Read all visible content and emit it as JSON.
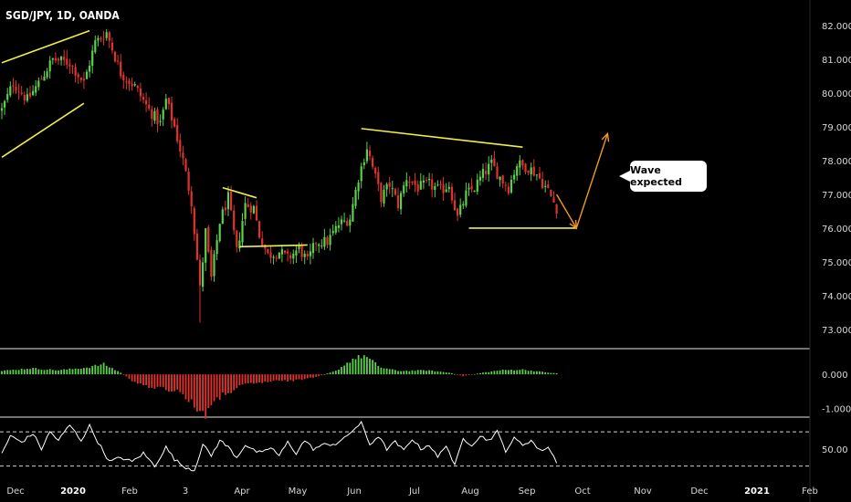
{
  "header": {
    "title": "SGD/JPY, 1D, OANDA"
  },
  "annotation": {
    "callout_text": "Wave expected"
  },
  "colors": {
    "up": "#5bd04a",
    "down": "#e0332d",
    "trendline": "#f2ef45",
    "arrow": "#f39a1e",
    "axis": "#e6e6e6"
  },
  "chart_data": [
    {
      "type": "candlestick",
      "title": "SGD/JPY, 1D, OANDA",
      "x_ticks": [
        "Dec",
        "2020",
        "Feb",
        "3",
        "Apr",
        "May",
        "Jun",
        "Jul",
        "Aug",
        "Sep",
        "Oct",
        "Nov",
        "Dec",
        "2021",
        "Feb"
      ],
      "y_ticks": [
        "82.000",
        "81.000",
        "80.000",
        "79.000",
        "78.000",
        "77.000",
        "76.000",
        "75.000",
        "74.000",
        "73.000"
      ],
      "ylim": [
        72.7,
        82.3
      ],
      "anchors": [
        [
          0,
          79.5
        ],
        [
          4,
          80.3
        ],
        [
          9,
          79.8
        ],
        [
          13,
          80.3
        ],
        [
          18,
          81.0
        ],
        [
          24,
          80.9
        ],
        [
          29,
          80.3
        ],
        [
          33,
          81.5
        ],
        [
          37,
          81.8
        ],
        [
          42,
          80.6
        ],
        [
          47,
          80.2
        ],
        [
          52,
          79.5
        ],
        [
          56,
          79.1
        ],
        [
          58,
          79.8
        ],
        [
          61,
          79.0
        ],
        [
          64,
          78.0
        ],
        [
          67,
          76.8
        ],
        [
          70,
          74.2
        ],
        [
          72,
          75.9
        ],
        [
          74,
          74.5
        ],
        [
          77,
          76.2
        ],
        [
          80,
          76.9
        ],
        [
          83,
          75.3
        ],
        [
          86,
          76.7
        ],
        [
          89,
          76.6
        ],
        [
          91,
          75.8
        ],
        [
          94,
          75.2
        ],
        [
          98,
          75.3
        ],
        [
          101,
          75.1
        ],
        [
          105,
          75.4
        ],
        [
          108,
          75.0
        ],
        [
          111,
          75.6
        ],
        [
          115,
          75.6
        ],
        [
          119,
          76.1
        ],
        [
          123,
          76.3
        ],
        [
          126,
          77.5
        ],
        [
          129,
          78.4
        ],
        [
          131,
          77.8
        ],
        [
          134,
          76.9
        ],
        [
          137,
          77.3
        ],
        [
          140,
          76.7
        ],
        [
          143,
          77.5
        ],
        [
          147,
          77.2
        ],
        [
          151,
          77.3
        ],
        [
          155,
          77.1
        ],
        [
          158,
          77.3
        ],
        [
          161,
          76.3
        ],
        [
          164,
          77.0
        ],
        [
          167,
          77.2
        ],
        [
          170,
          77.6
        ],
        [
          173,
          77.9
        ],
        [
          176,
          77.5
        ],
        [
          179,
          77.2
        ],
        [
          182,
          77.9
        ],
        [
          186,
          77.8
        ],
        [
          189,
          77.6
        ],
        [
          193,
          77.1
        ],
        [
          196,
          76.6
        ]
      ],
      "wick_extremes": {
        "high": 81.9,
        "low": 73.2
      },
      "annotations": {
        "trendlines": [
          {
            "from": [
              0,
              80.9
            ],
            "to": [
              31,
              81.85
            ]
          },
          {
            "from": [
              0,
              78.1
            ],
            "to": [
              29,
              79.7
            ]
          },
          {
            "from": [
              78,
              77.2
            ],
            "to": [
              90,
              76.9
            ]
          },
          {
            "from": [
              84,
              75.45
            ],
            "to": [
              108,
              75.5
            ]
          },
          {
            "from": [
              127,
              78.95
            ],
            "to": [
              184,
              78.4
            ]
          },
          {
            "from": [
              165,
              76.0
            ],
            "to": [
              203,
              76.0
            ]
          }
        ],
        "projection": [
          [
            196,
            77.0
          ],
          [
            203,
            76.0
          ],
          [
            214,
            78.8
          ]
        ]
      }
    },
    {
      "type": "histogram",
      "name": "Momentum oscillator",
      "y_ticks": [
        "0.000",
        "-1.000"
      ],
      "ylim": [
        -1.2,
        0.7
      ],
      "anchors": [
        [
          0,
          0.1
        ],
        [
          10,
          0.18
        ],
        [
          20,
          0.12
        ],
        [
          30,
          0.2
        ],
        [
          36,
          0.3
        ],
        [
          42,
          0.05
        ],
        [
          48,
          -0.3
        ],
        [
          56,
          -0.4
        ],
        [
          63,
          -0.5
        ],
        [
          68,
          -0.95
        ],
        [
          72,
          -1.15
        ],
        [
          78,
          -0.6
        ],
        [
          86,
          -0.3
        ],
        [
          96,
          -0.2
        ],
        [
          104,
          -0.18
        ],
        [
          112,
          -0.05
        ],
        [
          118,
          0.1
        ],
        [
          124,
          0.45
        ],
        [
          128,
          0.55
        ],
        [
          134,
          0.2
        ],
        [
          140,
          0.1
        ],
        [
          150,
          0.12
        ],
        [
          158,
          0.05
        ],
        [
          163,
          -0.05
        ],
        [
          170,
          0.05
        ],
        [
          176,
          0.12
        ],
        [
          184,
          0.14
        ],
        [
          190,
          0.08
        ],
        [
          197,
          0.02
        ]
      ]
    },
    {
      "type": "line",
      "name": "RSI",
      "y_ticks": [
        "50.00"
      ],
      "ylim": [
        20,
        85
      ],
      "bands": [
        30,
        70
      ],
      "anchors": [
        [
          0,
          45
        ],
        [
          3,
          65
        ],
        [
          7,
          58
        ],
        [
          11,
          68
        ],
        [
          14,
          50
        ],
        [
          17,
          70
        ],
        [
          20,
          60
        ],
        [
          24,
          78
        ],
        [
          28,
          60
        ],
        [
          31,
          77
        ],
        [
          34,
          58
        ],
        [
          38,
          35
        ],
        [
          42,
          40
        ],
        [
          46,
          35
        ],
        [
          50,
          45
        ],
        [
          54,
          30
        ],
        [
          58,
          52
        ],
        [
          61,
          38
        ],
        [
          64,
          30
        ],
        [
          68,
          25
        ],
        [
          71,
          55
        ],
        [
          74,
          42
        ],
        [
          77,
          60
        ],
        [
          80,
          52
        ],
        [
          83,
          40
        ],
        [
          86,
          55
        ],
        [
          89,
          48
        ],
        [
          92,
          45
        ],
        [
          95,
          52
        ],
        [
          98,
          42
        ],
        [
          101,
          58
        ],
        [
          104,
          45
        ],
        [
          107,
          60
        ],
        [
          110,
          50
        ],
        [
          114,
          55
        ],
        [
          118,
          56
        ],
        [
          121,
          62
        ],
        [
          124,
          72
        ],
        [
          127,
          80
        ],
        [
          130,
          55
        ],
        [
          133,
          65
        ],
        [
          136,
          50
        ],
        [
          139,
          58
        ],
        [
          142,
          48
        ],
        [
          145,
          62
        ],
        [
          148,
          50
        ],
        [
          151,
          55
        ],
        [
          154,
          40
        ],
        [
          157,
          55
        ],
        [
          160,
          30
        ],
        [
          163,
          62
        ],
        [
          166,
          55
        ],
        [
          169,
          65
        ],
        [
          172,
          60
        ],
        [
          175,
          70
        ],
        [
          178,
          48
        ],
        [
          181,
          62
        ],
        [
          184,
          55
        ],
        [
          187,
          60
        ],
        [
          190,
          48
        ],
        [
          193,
          52
        ],
        [
          196,
          35
        ]
      ]
    }
  ]
}
